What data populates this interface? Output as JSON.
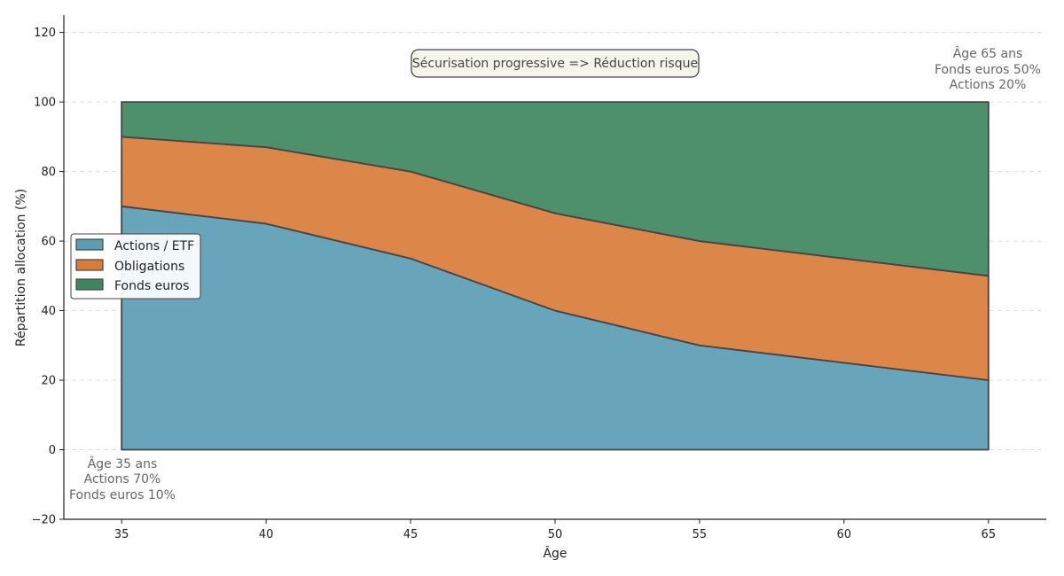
{
  "chart_data": {
    "type": "area",
    "stacked": true,
    "x": [
      35,
      40,
      45,
      50,
      55,
      60,
      65
    ],
    "series": [
      {
        "name": "Actions / ETF",
        "values": [
          70,
          65,
          55,
          40,
          30,
          25,
          20
        ],
        "color": "#5b9db4"
      },
      {
        "name": "Obligations",
        "values": [
          20,
          22,
          25,
          28,
          30,
          30,
          30
        ],
        "color": "#d97c3a"
      },
      {
        "name": "Fonds euros",
        "values": [
          10,
          13,
          20,
          32,
          40,
          45,
          50
        ],
        "color": "#3f8560"
      }
    ],
    "xlabel": "Âge",
    "ylabel": "Répartition allocation (%)",
    "xlim": [
      33,
      67
    ],
    "ylim": [
      -20,
      125
    ],
    "xticks": [
      35,
      40,
      45,
      50,
      55,
      60,
      65
    ],
    "yticks": [
      -20,
      0,
      20,
      40,
      60,
      80,
      100,
      120
    ],
    "grid": "horizontal-dashed",
    "legend_position": "center-left",
    "box_annotation": "Sécurisation progressive => Réduction risque",
    "annotations": {
      "start": [
        "Âge 35 ans",
        "Actions 70%",
        "Fonds euros 10%"
      ],
      "end": [
        "Âge 65 ans",
        "Fonds euros 50%",
        "Actions 20%"
      ]
    }
  }
}
